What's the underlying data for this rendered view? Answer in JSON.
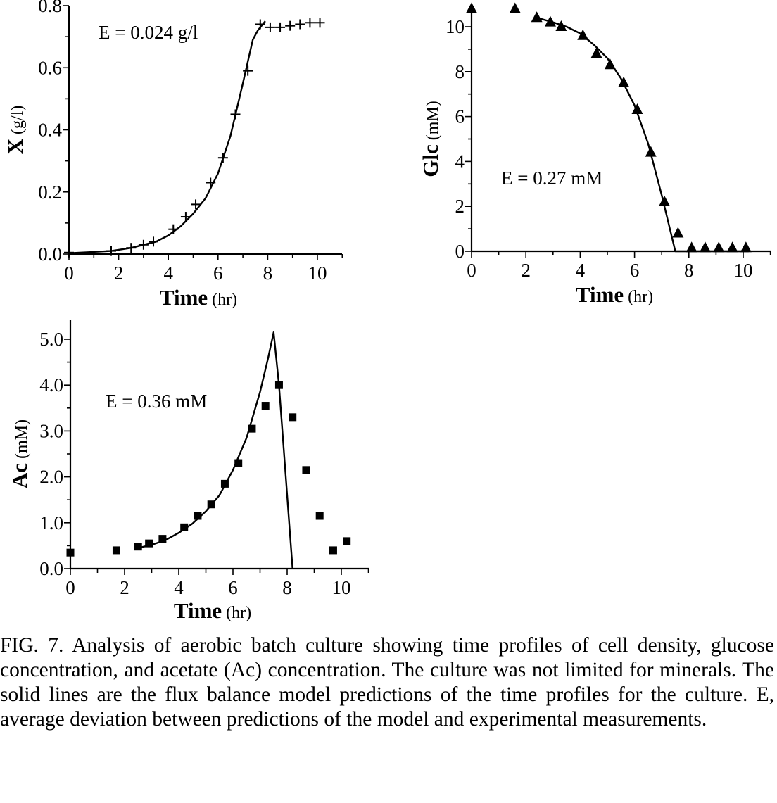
{
  "chart_data": [
    {
      "type": "scatter",
      "id": "x",
      "xlabel": "Time",
      "xlabel_unit": "(hr)",
      "ylabel": "X",
      "ylabel_unit": "(g/l)",
      "xlim": [
        0,
        11
      ],
      "ylim": [
        0,
        0.8
      ],
      "xticks": [
        "0",
        "2",
        "4",
        "6",
        "8",
        "10"
      ],
      "yticks": [
        "0.0",
        "0.2",
        "0.4",
        "0.6",
        "0.8"
      ],
      "annotation": "E = 0.024 g/l",
      "marker": "plus",
      "series": [
        {
          "kind": "points",
          "x": [
            0,
            1.7,
            2.5,
            3.0,
            3.4,
            4.2,
            4.7,
            5.1,
            5.7,
            6.2,
            6.7,
            7.2,
            7.7,
            8.1,
            8.5,
            8.9,
            9.3,
            9.7,
            10.1
          ],
          "y": [
            0.005,
            0.01,
            0.02,
            0.03,
            0.04,
            0.08,
            0.12,
            0.16,
            0.23,
            0.31,
            0.45,
            0.59,
            0.74,
            0.73,
            0.73,
            0.735,
            0.74,
            0.745,
            0.745
          ]
        },
        {
          "kind": "line",
          "x": [
            0,
            1.7,
            2.5,
            3.0,
            3.5,
            4.0,
            4.5,
            5.0,
            5.5,
            6.0,
            6.5,
            7.0,
            7.4,
            7.6,
            7.9
          ],
          "y": [
            0.003,
            0.01,
            0.02,
            0.03,
            0.04,
            0.06,
            0.09,
            0.13,
            0.18,
            0.26,
            0.38,
            0.55,
            0.69,
            0.72,
            0.75
          ]
        }
      ]
    },
    {
      "type": "scatter",
      "id": "glc",
      "xlabel": "Time",
      "xlabel_unit": "(hr)",
      "ylabel": "Glc",
      "ylabel_unit": "(mM)",
      "xlim": [
        0,
        10.8
      ],
      "ylim": [
        0,
        11
      ],
      "xticks": [
        "0",
        "2",
        "4",
        "6",
        "8",
        "10"
      ],
      "yticks": [
        "0",
        "2",
        "4",
        "6",
        "8",
        "10"
      ],
      "annotation": "E = 0.27 mM",
      "marker": "triangle",
      "series": [
        {
          "kind": "points",
          "x": [
            0,
            1.6,
            2.4,
            2.9,
            3.3,
            4.1,
            4.6,
            5.1,
            5.6,
            6.1,
            6.6,
            7.1,
            7.6,
            8.1,
            8.6,
            9.1,
            9.6,
            10.1
          ],
          "y": [
            10.8,
            10.8,
            10.4,
            10.2,
            10.0,
            9.6,
            8.8,
            8.3,
            7.5,
            6.3,
            4.4,
            2.2,
            0.8,
            0.15,
            0.15,
            0.15,
            0.15,
            0.15
          ]
        },
        {
          "kind": "line",
          "x": [
            2.4,
            3.0,
            3.5,
            4.0,
            4.5,
            5.0,
            5.5,
            6.0,
            6.5,
            7.0,
            7.3,
            7.5,
            10.2
          ],
          "y": [
            10.4,
            10.2,
            10.0,
            9.7,
            9.2,
            8.6,
            7.7,
            6.5,
            4.8,
            2.5,
            1.0,
            0,
            0
          ]
        }
      ]
    },
    {
      "type": "scatter",
      "id": "ac",
      "xlabel": "Time",
      "xlabel_unit": "(hr)",
      "ylabel": "Ac",
      "ylabel_unit": "(mM)",
      "xlim": [
        0,
        11
      ],
      "ylim": [
        0,
        5.5
      ],
      "xticks": [
        "0",
        "2",
        "4",
        "6",
        "8",
        "10"
      ],
      "yticks": [
        "0.0",
        "1.0",
        "2.0",
        "3.0",
        "4.0",
        "5.0"
      ],
      "annotation": "E = 0.36 mM",
      "marker": "square",
      "series": [
        {
          "kind": "points",
          "x": [
            0,
            1.7,
            2.5,
            2.9,
            3.4,
            4.2,
            4.7,
            5.2,
            5.7,
            6.2,
            6.7,
            7.2,
            7.7,
            8.2,
            8.7,
            9.2,
            9.7,
            10.2
          ],
          "y": [
            0.35,
            0.4,
            0.48,
            0.55,
            0.65,
            0.9,
            1.15,
            1.4,
            1.85,
            2.3,
            3.05,
            3.55,
            4.0,
            3.3,
            2.15,
            1.15,
            0.4,
            0.6
          ]
        },
        {
          "kind": "line",
          "x": [
            2.5,
            3.0,
            3.5,
            4.0,
            4.5,
            5.0,
            5.5,
            6.0,
            6.5,
            7.0,
            7.3,
            7.5,
            7.7,
            8.2
          ],
          "y": [
            0.45,
            0.52,
            0.62,
            0.78,
            0.98,
            1.25,
            1.6,
            2.15,
            2.85,
            3.85,
            4.6,
            5.15,
            4.0,
            0
          ]
        }
      ]
    }
  ],
  "caption": "FIG. 7. Analysis of aerobic batch culture showing time profiles of cell density, glucose concentration, and acetate (Ac) concentration. The culture was not limited for minerals. The solid lines are the flux balance model predictions of the time profiles for the culture. E, average deviation between predictions of the model and experimental measurements."
}
